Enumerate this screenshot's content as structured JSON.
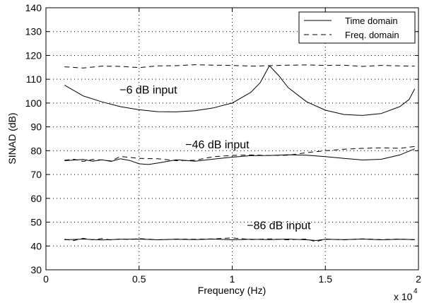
{
  "chart_data": {
    "type": "line",
    "xlabel": "Frequency (Hz)",
    "ylabel": "SINAD (dB)",
    "x_multiplier_label": "x 10",
    "x_multiplier_exp": "4",
    "xlim": [
      0,
      20000
    ],
    "ylim": [
      30,
      140
    ],
    "xticks": [
      0,
      5000,
      10000,
      15000,
      20000
    ],
    "xtick_labels": [
      "0",
      "0.5",
      "1",
      "1.5",
      "2"
    ],
    "yticks": [
      30,
      40,
      50,
      60,
      70,
      80,
      90,
      100,
      110,
      120,
      130,
      140
    ],
    "grid": true,
    "legend_position": "top-right",
    "legend": [
      {
        "label": "Time domain",
        "style": "solid"
      },
      {
        "label": "Freq. domain",
        "style": "dashed"
      }
    ],
    "annotations": [
      {
        "text": "−6 dB input",
        "x": 5500,
        "y": 104
      },
      {
        "text": "−46 dB input",
        "x": 9200,
        "y": 81
      },
      {
        "text": "−86 dB input",
        "x": 12500,
        "y": 47
      }
    ],
    "series": [
      {
        "group": "−6 dB input",
        "style": "solid",
        "x": [
          1000,
          2000,
          3000,
          4000,
          5000,
          6000,
          7000,
          8000,
          9000,
          10000,
          11000,
          11500,
          12000,
          12500,
          13000,
          14000,
          15000,
          16000,
          17000,
          18000,
          19000,
          19500,
          19800
        ],
        "y": [
          107.5,
          103,
          100.5,
          98.5,
          97.2,
          96.4,
          96.3,
          96.8,
          98,
          100,
          104.5,
          108.5,
          115.7,
          111.5,
          106.5,
          100.5,
          97,
          95.2,
          94.8,
          95.6,
          98.5,
          101.5,
          106
        ]
      },
      {
        "group": "−6 dB input",
        "style": "dashed",
        "x": [
          1000,
          2000,
          3000,
          4000,
          5000,
          6000,
          7000,
          8000,
          9000,
          10000,
          11000,
          12000,
          13000,
          14000,
          15000,
          16000,
          17000,
          18000,
          19000,
          19800
        ],
        "y": [
          115.2,
          114.7,
          115.5,
          115.4,
          114.9,
          115.6,
          115.7,
          116.1,
          115.9,
          115.8,
          115.5,
          115.7,
          115.9,
          116,
          115.8,
          115.9,
          115.4,
          115.8,
          115.6,
          115.5
        ]
      },
      {
        "group": "−46 dB input",
        "style": "solid",
        "x": [
          1000,
          2000,
          2500,
          3000,
          3500,
          4000,
          4500,
          5000,
          5500,
          6000,
          7000,
          8000,
          9000,
          10000,
          11000,
          12000,
          13000,
          14000,
          15000,
          16000,
          17000,
          18000,
          19000,
          19800
        ],
        "y": [
          75.8,
          76.3,
          75.6,
          76.2,
          75.5,
          76.6,
          75.9,
          74.5,
          74.2,
          74.8,
          76.2,
          75.6,
          76.5,
          77.3,
          77.9,
          78,
          78.3,
          78.1,
          77.5,
          76.8,
          76.1,
          76.4,
          78.2,
          80.8
        ]
      },
      {
        "group": "−46 dB input",
        "style": "dashed",
        "x": [
          1000,
          1500,
          2000,
          2500,
          3000,
          3500,
          4000,
          5000,
          6000,
          7000,
          8000,
          9000,
          10000,
          11000,
          12000,
          13000,
          14000,
          15000,
          16000,
          17000,
          18000,
          19000,
          19800
        ],
        "y": [
          76,
          76.4,
          75.5,
          76.3,
          76.1,
          75.7,
          77.6,
          76.8,
          76.6,
          75.8,
          76,
          77.5,
          78,
          78.2,
          78,
          78.1,
          79.2,
          80,
          80.6,
          81,
          81.2,
          81,
          81.8
        ]
      },
      {
        "group": "−86 dB input",
        "style": "solid",
        "x": [
          1000,
          2000,
          3000,
          4000,
          5000,
          6000,
          7000,
          8000,
          9000,
          10000,
          11000,
          12000,
          13000,
          14000,
          14500,
          15000,
          16000,
          17000,
          18000,
          19000,
          19800
        ],
        "y": [
          42.6,
          42.9,
          42.5,
          42.8,
          42.9,
          42.6,
          42.8,
          42.7,
          42.9,
          42.6,
          42.8,
          42.7,
          42.9,
          42.6,
          42.3,
          42.8,
          42.7,
          42.9,
          42.6,
          42.8,
          42.7
        ]
      },
      {
        "group": "−86 dB input",
        "style": "dashed",
        "x": [
          1000,
          1500,
          2000,
          2500,
          3000,
          3500,
          4000,
          4500,
          5000,
          6000,
          7000,
          8000,
          9000,
          10000,
          11000,
          12000,
          13000,
          14000,
          14500,
          15000,
          16000,
          17000,
          18000,
          19000,
          19800
        ],
        "y": [
          42.8,
          42.3,
          43.2,
          42.6,
          43.1,
          42.5,
          43,
          42.7,
          43.1,
          42.6,
          42.9,
          42.8,
          43,
          43.4,
          42.7,
          43,
          42.6,
          42.9,
          41.8,
          42.9,
          42.6,
          43,
          42.7,
          42.9,
          42.6
        ]
      }
    ]
  }
}
